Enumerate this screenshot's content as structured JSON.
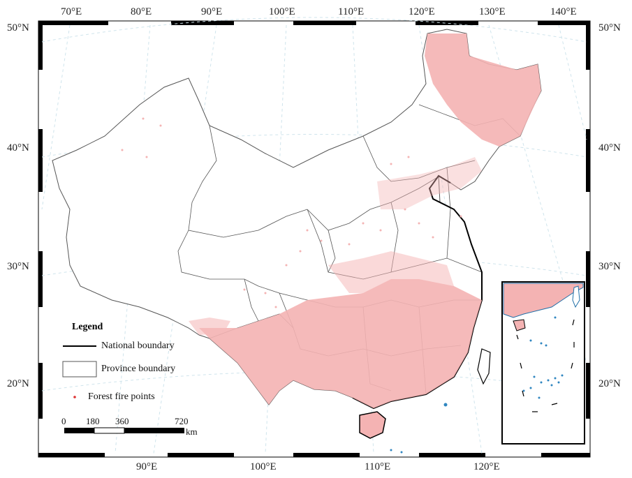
{
  "top_ticks": [
    "70°E",
    "80°E",
    "90°E",
    "100°E",
    "110°E",
    "120°E",
    "130°E",
    "140°E"
  ],
  "bottom_ticks": [
    "90°E",
    "100°E",
    "110°E",
    "120°E"
  ],
  "left_ticks": [
    "50°N",
    "40°N",
    "30°N",
    "20°N"
  ],
  "right_ticks": [
    "50°N",
    "40°N",
    "30°N",
    "20°N"
  ],
  "legend": {
    "title": "Legend",
    "national": "National boundary",
    "province": "Province boundary",
    "fire": "Forest fire points"
  },
  "scale": {
    "labels": [
      "0",
      "180",
      "360",
      "720"
    ],
    "unit": "km"
  },
  "colors": {
    "fire_fill": "#f4b3b3",
    "boundary": "#555555",
    "frame": "#000000"
  }
}
